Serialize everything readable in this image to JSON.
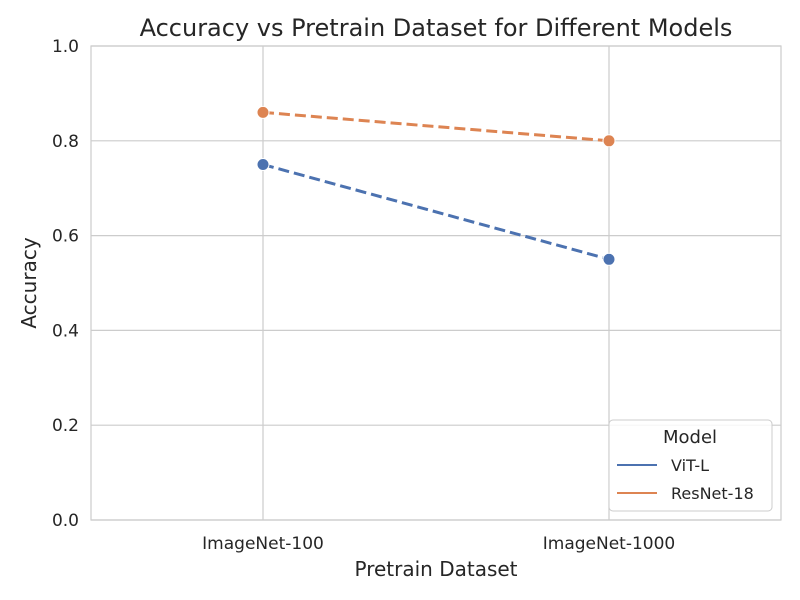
{
  "chart_data": {
    "type": "line",
    "title": "Accuracy vs Pretrain Dataset for Different Models",
    "xlabel": "Pretrain Dataset",
    "ylabel": "Accuracy",
    "categories": [
      "ImageNet-100",
      "ImageNet-1000"
    ],
    "ylim": [
      0,
      1
    ],
    "yticks": [
      "0.0",
      "0.2",
      "0.4",
      "0.6",
      "0.8",
      "1.0"
    ],
    "grid": true,
    "legend": {
      "title": "Model",
      "placement": "lower right"
    },
    "series": [
      {
        "name": "ViT-L",
        "values": [
          0.75,
          0.55
        ],
        "color": "#4c72b0",
        "linestyle": "dashed",
        "marker": "circle"
      },
      {
        "name": "ResNet-18",
        "values": [
          0.86,
          0.8
        ],
        "color": "#dd8452",
        "linestyle": "dashed",
        "marker": "circle"
      }
    ]
  }
}
